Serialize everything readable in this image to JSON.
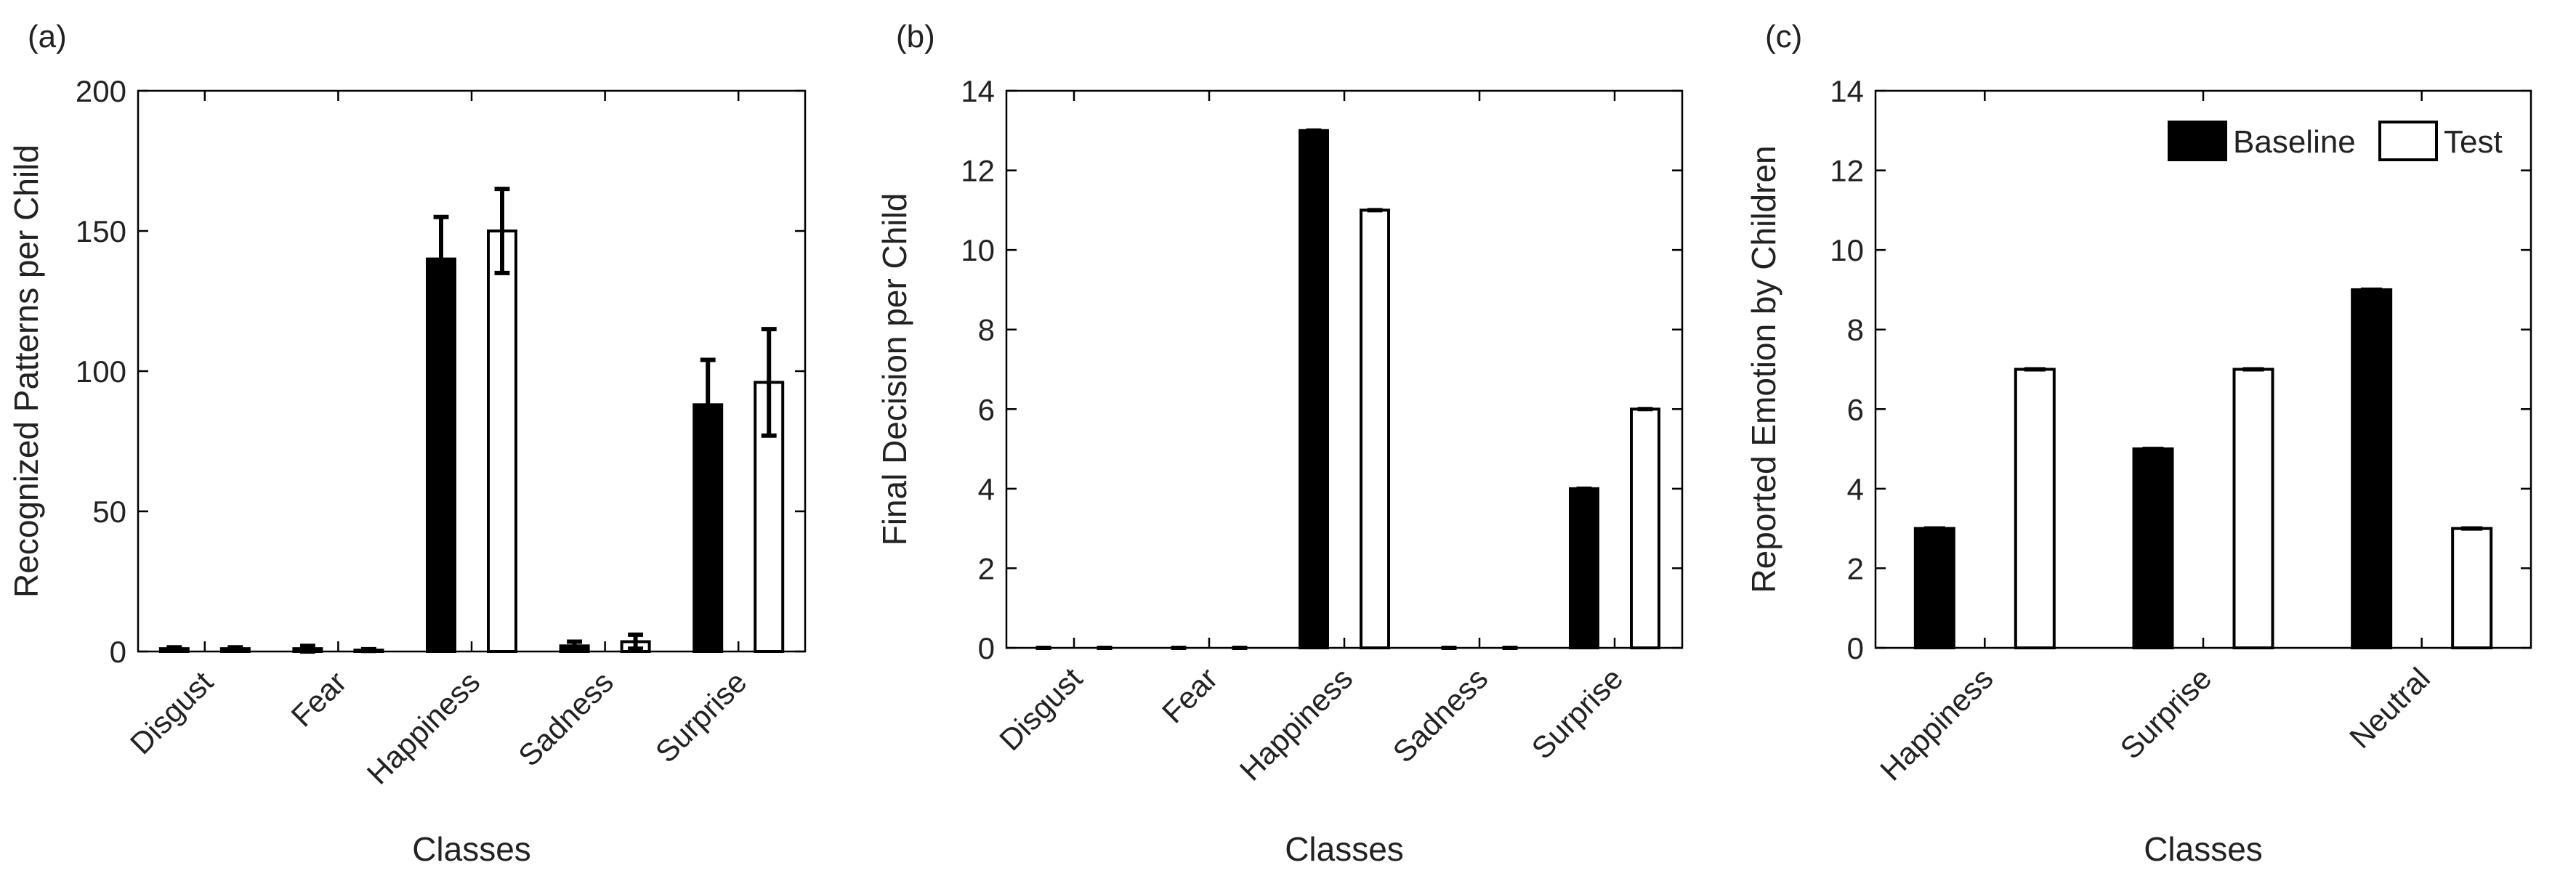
{
  "colors": {
    "baseline": "#000000",
    "test": "#ffffff",
    "axis": "#000000",
    "text": "#222222"
  },
  "legend": {
    "baseline": "Baseline",
    "test": "Test",
    "placement": "top-right of panel (c)"
  },
  "chart_data": [
    {
      "type": "bar",
      "panel_label": "(a)",
      "xlabel": "Classes",
      "ylabel": "Recognized Patterns per Child",
      "ylim": [
        0,
        200
      ],
      "yticks": [
        0,
        50,
        100,
        150,
        200
      ],
      "categories": [
        "Disgust",
        "Fear",
        "Happiness",
        "Sadness",
        "Surprise"
      ],
      "grid": false,
      "error_bars": true,
      "series": [
        {
          "name": "Baseline",
          "values": [
            1,
            1,
            140,
            2,
            88
          ],
          "errors": [
            0.5,
            1,
            15,
            1.5,
            16
          ]
        },
        {
          "name": "Test",
          "values": [
            1,
            0.5,
            150,
            3.5,
            96
          ],
          "errors": [
            0.5,
            0.3,
            15,
            2.5,
            19
          ]
        }
      ]
    },
    {
      "type": "bar",
      "panel_label": "(b)",
      "xlabel": "Classes",
      "ylabel": "Final Decision per Child",
      "ylim": [
        0,
        14
      ],
      "yticks": [
        0,
        2,
        4,
        6,
        8,
        10,
        12,
        14
      ],
      "categories": [
        "Disgust",
        "Fear",
        "Happiness",
        "Sadness",
        "Surprise"
      ],
      "grid": false,
      "error_bars": true,
      "series": [
        {
          "name": "Baseline",
          "values": [
            0,
            0,
            13,
            0,
            4
          ],
          "errors": [
            0,
            0,
            0,
            0,
            0
          ]
        },
        {
          "name": "Test",
          "values": [
            0,
            0,
            11,
            0,
            6
          ],
          "errors": [
            0,
            0,
            0,
            0,
            0
          ]
        }
      ]
    },
    {
      "type": "bar",
      "panel_label": "(c)",
      "xlabel": "Classes",
      "ylabel": "Reported Emotion by Children",
      "ylim": [
        0,
        14
      ],
      "yticks": [
        0,
        2,
        4,
        6,
        8,
        10,
        12,
        14
      ],
      "categories": [
        "Happiness",
        "Surprise",
        "Neutral"
      ],
      "grid": false,
      "error_bars": true,
      "legend": true,
      "series": [
        {
          "name": "Baseline",
          "values": [
            3,
            5,
            9
          ],
          "errors": [
            0,
            0,
            0
          ]
        },
        {
          "name": "Test",
          "values": [
            7,
            7,
            3
          ],
          "errors": [
            0,
            0,
            0
          ]
        }
      ]
    }
  ]
}
